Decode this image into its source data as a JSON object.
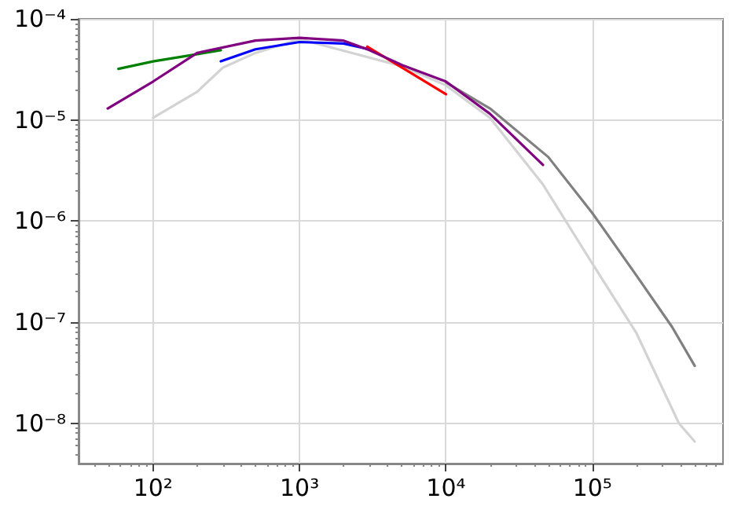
{
  "chart_data": {
    "type": "line",
    "log": "xy",
    "grid": true,
    "marker": "none",
    "line_style": "solid",
    "xlim": [
      31,
      780000
    ],
    "ylim": [
      4e-09,
      0.0001
    ],
    "xticks": [
      {
        "value": 100,
        "label": "10²"
      },
      {
        "value": 1000,
        "label": "10³"
      },
      {
        "value": 10000,
        "label": "10⁴"
      },
      {
        "value": 100000,
        "label": "10⁵"
      }
    ],
    "yticks": [
      {
        "value": 1e-08,
        "label": "10⁻⁸"
      },
      {
        "value": 1e-07,
        "label": "10⁻⁷"
      },
      {
        "value": 1e-06,
        "label": "10⁻⁶"
      },
      {
        "value": 1e-05,
        "label": "10⁻⁵"
      },
      {
        "value": 0.0001,
        "label": "10⁻⁴"
      }
    ],
    "series": [
      {
        "color": "#d3d3d3",
        "x": [
          100,
          200,
          300,
          500,
          1000,
          5000,
          10000,
          20000,
          46000,
          100000,
          200000,
          390000,
          500000
        ],
        "values": [
          1.05e-05,
          1.9e-05,
          3.3e-05,
          4.6e-05,
          6.3e-05,
          3.4e-05,
          2.2e-05,
          1.05e-05,
          2.3e-06,
          3.8e-07,
          7.8e-08,
          1e-08,
          6.6e-09
        ]
      },
      {
        "color": "#008000",
        "x": [
          58,
          100,
          170,
          290
        ],
        "values": [
          3.2e-05,
          3.8e-05,
          4.3e-05,
          4.9e-05
        ]
      },
      {
        "color": "#0000ff",
        "x": [
          290,
          500,
          1000,
          2000,
          3000
        ],
        "values": [
          3.8e-05,
          5e-05,
          5.9e-05,
          5.7e-05,
          5e-05
        ]
      },
      {
        "color": "#ff0000",
        "x": [
          2900,
          5000,
          10000
        ],
        "values": [
          5.3e-05,
          3.3e-05,
          1.8e-05
        ]
      },
      {
        "color": "#808080",
        "x": [
          10000,
          20000,
          50000,
          100000,
          200000,
          350000,
          500000
        ],
        "values": [
          2.35e-05,
          1.3e-05,
          4.3e-06,
          1.2e-06,
          2.9e-07,
          9e-08,
          3.7e-08
        ]
      },
      {
        "color": "#800080",
        "x": [
          49,
          100,
          200,
          500,
          1000,
          2000,
          3000,
          5000,
          10000,
          20000,
          46000
        ],
        "values": [
          1.3e-05,
          2.4e-05,
          4.6e-05,
          6.1e-05,
          6.5e-05,
          6.1e-05,
          4.9e-05,
          3.5e-05,
          2.4e-05,
          1.15e-05,
          3.6e-06
        ]
      }
    ]
  }
}
